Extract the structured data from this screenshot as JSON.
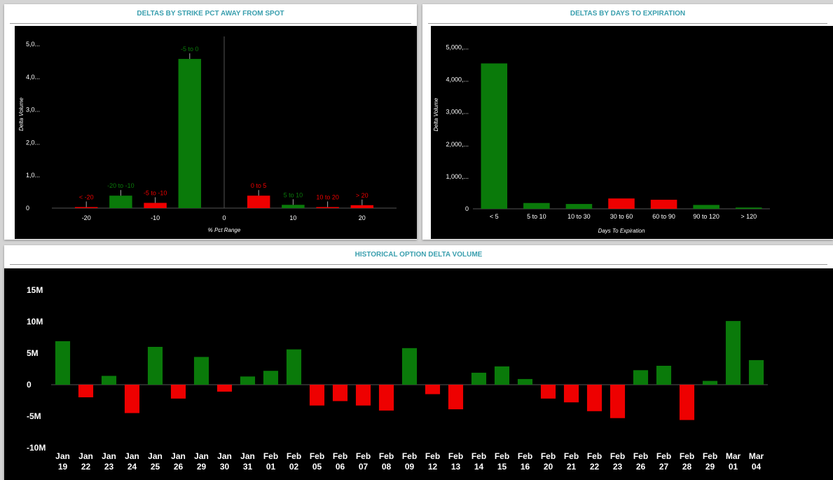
{
  "panels": {
    "strike": {
      "title": "DELTAS BY STRIKE PCT AWAY FROM SPOT"
    },
    "expiry": {
      "title": "DELTAS BY DAYS TO EXPIRATION"
    },
    "history": {
      "title": "HISTORICAL OPTION DELTA VOLUME"
    }
  },
  "colors": {
    "positive": "#0a7a0a",
    "negative": "#ee0000",
    "background": "#000000",
    "text": "#ffffff",
    "title": "#3a9fae"
  },
  "chart_data": [
    {
      "id": "strike",
      "type": "bar",
      "xlabel": "% Pct Range",
      "ylabel": "Delta Volume",
      "xlim": [
        -25,
        25
      ],
      "ylim": [
        0,
        5300
      ],
      "xticks": [
        -20,
        -10,
        0,
        10,
        20
      ],
      "xtick_labels": [
        "-20",
        "-10",
        "0",
        "10",
        "20"
      ],
      "yticks": [
        0,
        1000,
        2000,
        3000,
        4000,
        5000
      ],
      "ytick_labels": [
        "0",
        "1,0...",
        "2,0...",
        "3,0...",
        "4,0...",
        "5,0..."
      ],
      "bars": [
        {
          "label": "< -20",
          "x": -20,
          "value": 10,
          "sign": "negative"
        },
        {
          "label": "-20 to -10",
          "x": -15,
          "value": 380,
          "sign": "positive"
        },
        {
          "label": "-5 to -10",
          "x": -10,
          "value": 160,
          "sign": "negative"
        },
        {
          "label": "-5 to 0",
          "x": -5,
          "value": 4550,
          "sign": "positive"
        },
        {
          "label": "0 to 5",
          "x": 5,
          "value": 380,
          "sign": "negative"
        },
        {
          "label": "5 to 10",
          "x": 10,
          "value": 100,
          "sign": "positive"
        },
        {
          "label": "10 to 20",
          "x": 15,
          "value": 10,
          "sign": "negative"
        },
        {
          "label": "> 20",
          "x": 20,
          "value": 90,
          "sign": "negative"
        }
      ]
    },
    {
      "id": "expiry",
      "type": "bar",
      "xlabel": "Days To Expiration",
      "ylabel": "Delta Volume",
      "ylim": [
        0,
        5400
      ],
      "yticks": [
        0,
        1000,
        2000,
        3000,
        4000,
        5000
      ],
      "ytick_labels": [
        "0",
        "1,000,...",
        "2,000,...",
        "3,000,...",
        "4,000,...",
        "5,000,..."
      ],
      "categories": [
        "< 5",
        "5 to 10",
        "10 to 30",
        "30 to 60",
        "60 to 90",
        "90 to 120",
        "> 120"
      ],
      "values": [
        4500,
        180,
        150,
        320,
        280,
        120,
        40
      ],
      "signs": [
        "positive",
        "positive",
        "positive",
        "negative",
        "negative",
        "positive",
        "positive"
      ]
    },
    {
      "id": "history",
      "type": "bar",
      "ylim": [
        -10,
        15
      ],
      "yticks": [
        -10,
        -5,
        0,
        5,
        10,
        15
      ],
      "ytick_labels": [
        "-10M",
        "-5M",
        "0",
        "5M",
        "10M",
        "15M"
      ],
      "categories": [
        "Jan 19",
        "Jan 22",
        "Jan 23",
        "Jan 24",
        "Jan 25",
        "Jan 26",
        "Jan 29",
        "Jan 30",
        "Jan 31",
        "Feb 01",
        "Feb 02",
        "Feb 05",
        "Feb 06",
        "Feb 07",
        "Feb 08",
        "Feb 09",
        "Feb 12",
        "Feb 13",
        "Feb 14",
        "Feb 15",
        "Feb 16",
        "Feb 20",
        "Feb 21",
        "Feb 22",
        "Feb 23",
        "Feb 26",
        "Feb 27",
        "Feb 28",
        "Feb 29",
        "Mar 01",
        "Mar 04"
      ],
      "values": [
        6.9,
        -2.0,
        1.4,
        -4.5,
        6.0,
        -2.2,
        4.4,
        -1.1,
        1.3,
        2.2,
        5.6,
        -3.3,
        -2.6,
        -3.3,
        -4.1,
        5.8,
        -1.5,
        -3.9,
        1.9,
        2.9,
        0.9,
        -2.2,
        -2.8,
        -4.2,
        -5.3,
        2.3,
        3.0,
        -5.6,
        0.6,
        10.1,
        3.9
      ]
    }
  ]
}
